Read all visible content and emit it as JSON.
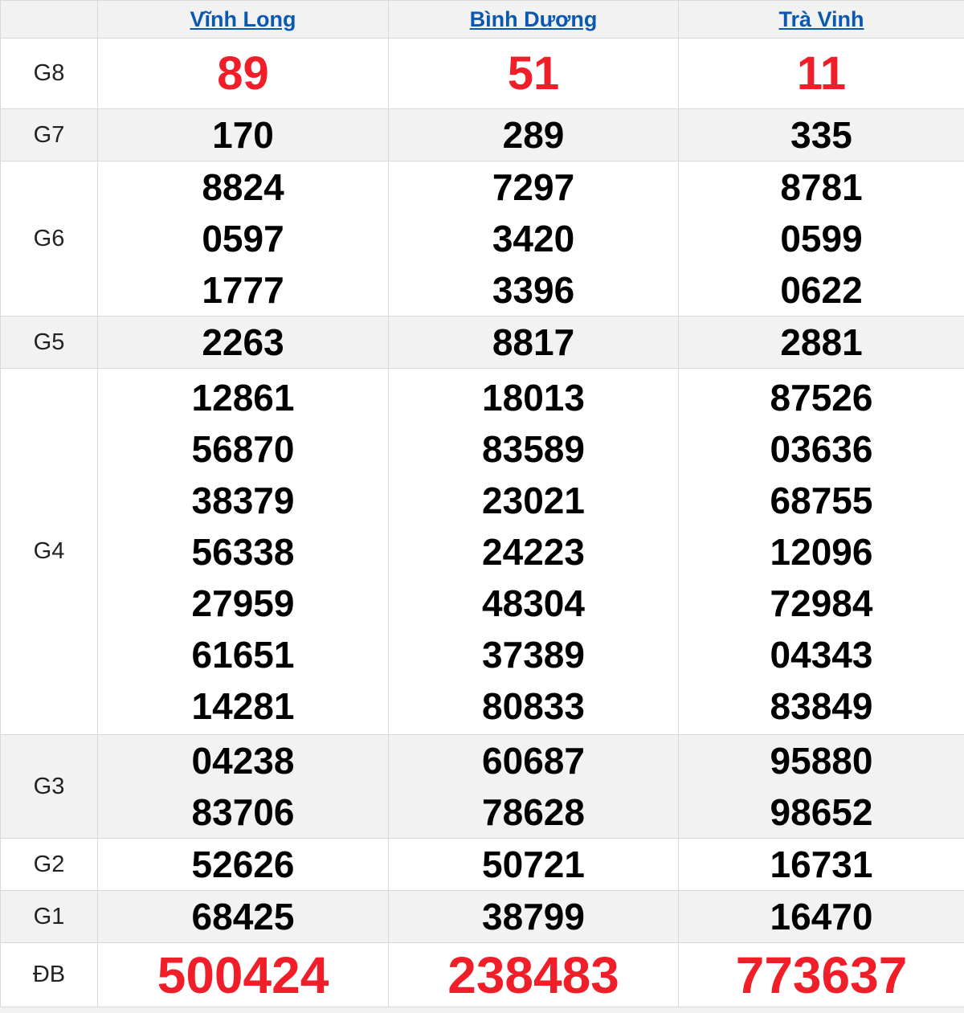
{
  "header": {
    "columns": [
      {
        "label": "Vĩnh Long"
      },
      {
        "label": "Bình Dương"
      },
      {
        "label": "Trà Vinh"
      }
    ]
  },
  "rows": [
    {
      "label": "G8",
      "cells": [
        [
          "89"
        ],
        [
          "51"
        ],
        [
          "11"
        ]
      ]
    },
    {
      "label": "G7",
      "cells": [
        [
          "170"
        ],
        [
          "289"
        ],
        [
          "335"
        ]
      ]
    },
    {
      "label": "G6",
      "cells": [
        [
          "8824",
          "0597",
          "1777"
        ],
        [
          "7297",
          "3420",
          "3396"
        ],
        [
          "8781",
          "0599",
          "0622"
        ]
      ]
    },
    {
      "label": "G5",
      "cells": [
        [
          "2263"
        ],
        [
          "8817"
        ],
        [
          "2881"
        ]
      ]
    },
    {
      "label": "G4",
      "cells": [
        [
          "12861",
          "56870",
          "38379",
          "56338",
          "27959",
          "61651",
          "14281"
        ],
        [
          "18013",
          "83589",
          "23021",
          "24223",
          "48304",
          "37389",
          "80833"
        ],
        [
          "87526",
          "03636",
          "68755",
          "12096",
          "72984",
          "04343",
          "83849"
        ]
      ]
    },
    {
      "label": "G3",
      "cells": [
        [
          "04238",
          "83706"
        ],
        [
          "60687",
          "78628"
        ],
        [
          "95880",
          "98652"
        ]
      ]
    },
    {
      "label": "G2",
      "cells": [
        [
          "52626"
        ],
        [
          "50721"
        ],
        [
          "16731"
        ]
      ]
    },
    {
      "label": "G1",
      "cells": [
        [
          "68425"
        ],
        [
          "38799"
        ],
        [
          "16470"
        ]
      ]
    },
    {
      "label": "ĐB",
      "cells": [
        [
          "500424"
        ],
        [
          "238483"
        ],
        [
          "773637"
        ]
      ]
    }
  ],
  "colors": {
    "highlight_red": "#f01e28",
    "link_blue": "#0a58b0",
    "stripe_gray": "#f2f2f2",
    "border_gray": "#d9d9d9"
  }
}
